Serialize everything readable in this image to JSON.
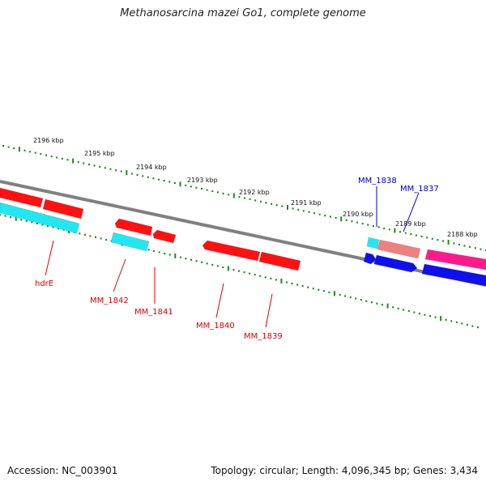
{
  "title": "Methanosarcina mazei Go1, complete genome",
  "footer": {
    "accession": "Accession: NC_003901",
    "summary": "Topology: circular; Length: 4,096,345 bp; Genes: 3,434"
  },
  "colors": {
    "backbone": "#808080",
    "ticks": "#1f8a1f",
    "red_gene": "#ff1111",
    "cyan_gene": "#22e6f0",
    "blue_gene": "#1010ee",
    "salmon_gene": "#f08080",
    "pink_gene": "#ff1a8c",
    "red_label": "#dd0000",
    "blue_label": "#0000cc"
  },
  "scale": {
    "labels": [
      "2196 kbp",
      "2195 kbp",
      "2194 kbp",
      "2193 kbp",
      "2192 kbp",
      "2191 kbp",
      "2190 kbp",
      "2189 kbp",
      "2188 kbp"
    ]
  },
  "gene_labels": [
    "hdrE",
    "MM_1842",
    "MM_1841",
    "MM_1840",
    "MM_1839",
    "MM_1838",
    "MM_1837"
  ]
}
